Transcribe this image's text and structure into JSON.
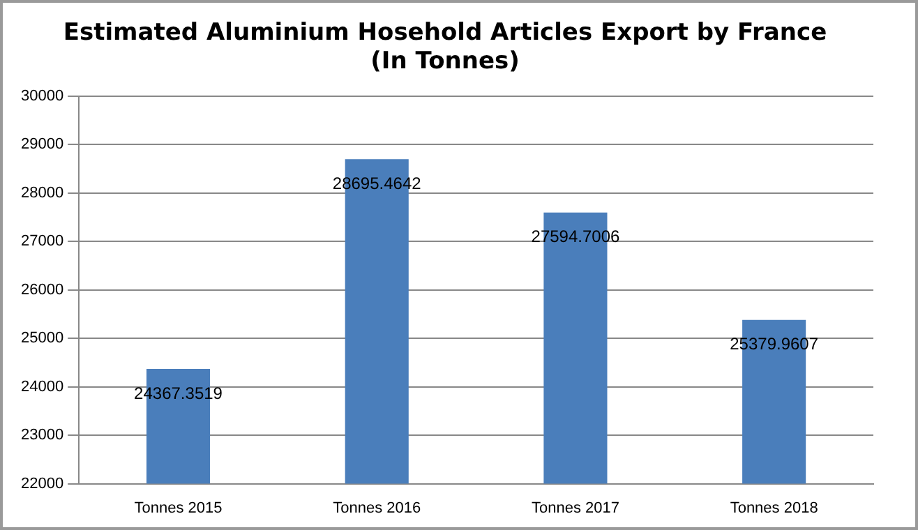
{
  "chart_data": {
    "type": "bar",
    "title": "Estimated Aluminium Hosehold Articles Export by France\n(In Tonnes)",
    "categories": [
      "Tonnes 2015",
      "Tonnes 2016",
      "Tonnes 2017",
      "Tonnes 2018"
    ],
    "values": [
      24367.3519,
      28695.4642,
      27594.7006,
      25379.9607
    ],
    "color": "#4a7ebb",
    "ylim": [
      22000,
      30000
    ],
    "yticks": [
      22000,
      23000,
      24000,
      25000,
      26000,
      27000,
      28000,
      29000,
      30000
    ],
    "grid": "y",
    "legend": false,
    "data_labels": true
  }
}
